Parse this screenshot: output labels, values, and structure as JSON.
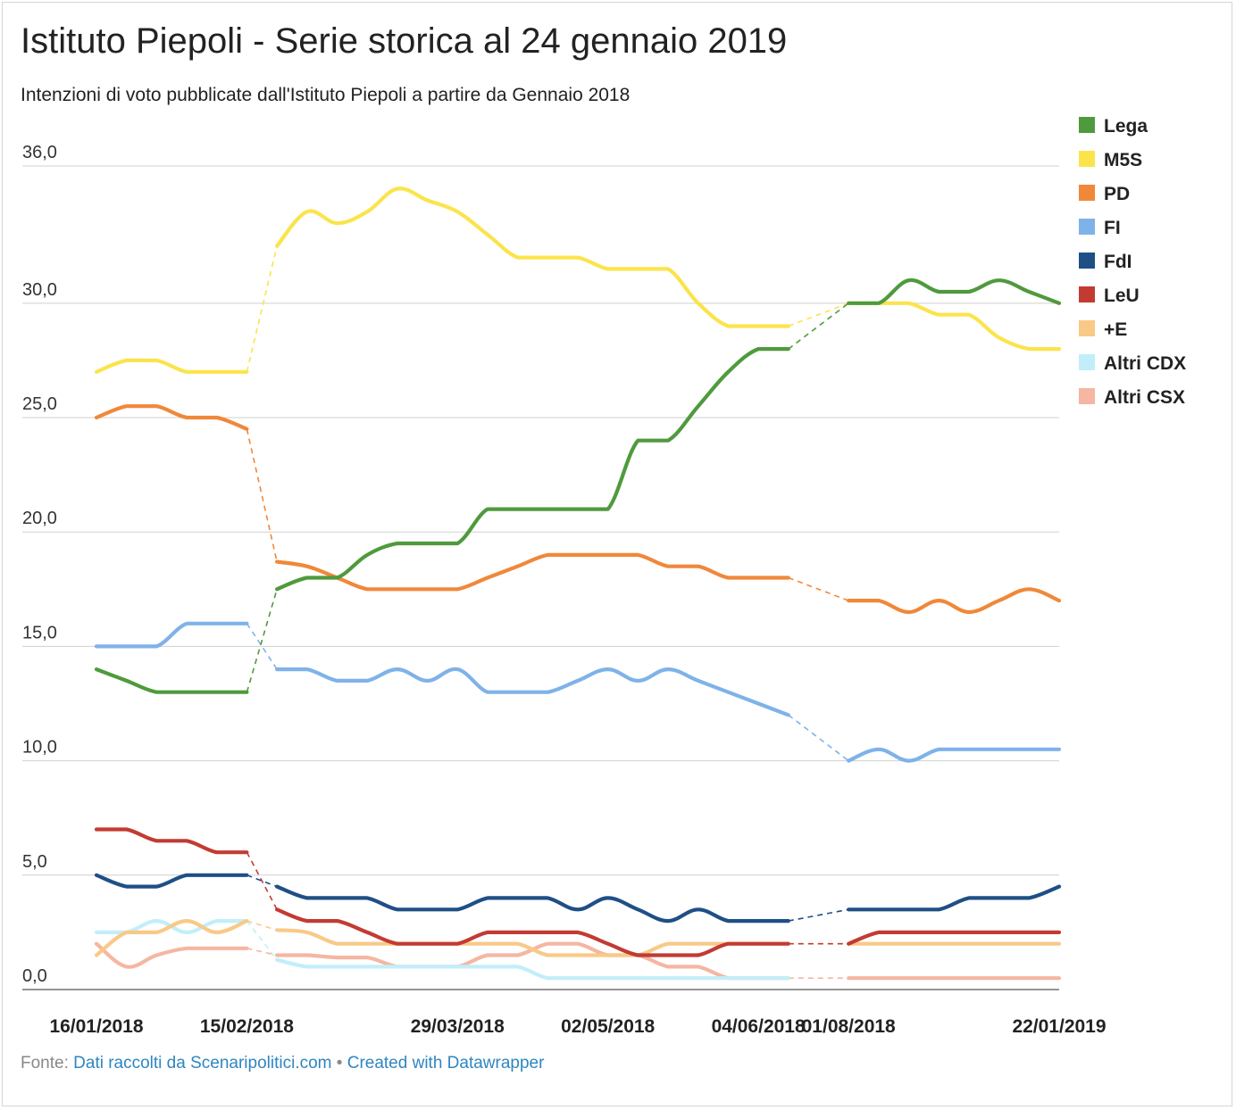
{
  "title": "Istituto Piepoli - Serie storica al 24 gennaio 2019",
  "subtitle": "Intenzioni di voto pubblicate dall'Istituto Piepoli a partire da Gennaio 2018",
  "footer": {
    "source_label": "Fonte:",
    "source_text": "Dati raccolti da Scenaripolitici.com",
    "separator": "•",
    "credit_text": "Created with Datawrapper"
  },
  "chart_data": {
    "type": "line",
    "title": "Istituto Piepoli - Serie storica al 24 gennaio 2019",
    "ylim": [
      0,
      36
    ],
    "yticks": [
      0,
      5,
      10,
      15,
      20,
      25,
      30,
      36
    ],
    "ytick_labels": [
      "0,0",
      "5,0",
      "10,0",
      "15,0",
      "20,0",
      "25,0",
      "30,0",
      "36,0"
    ],
    "xlim": [
      "2018-01-16",
      "2019-01-22"
    ],
    "xticks": [
      "2018-01-16",
      "2018-02-15",
      "2018-03-29",
      "2018-05-02",
      "2018-06-04",
      "2018-08-01",
      "2019-01-22"
    ],
    "xtick_labels": [
      "16/01/2018",
      "15/02/2018",
      "29/03/2018",
      "02/05/2018",
      "04/06/2018",
      "01/08/2018",
      "22/01/2019"
    ],
    "grid": true,
    "legend": "right",
    "gaps": [
      [
        "2018-02-15",
        "2018-03-09"
      ],
      [
        "2018-07-12",
        "2018-08-10"
      ]
    ],
    "series": [
      {
        "name": "Lega",
        "color": "#4f9a3d",
        "values": [
          [
            0,
            14
          ],
          [
            1,
            13.5
          ],
          [
            2,
            13
          ],
          [
            3,
            13
          ],
          [
            4,
            13
          ],
          [
            5,
            13
          ],
          [
            6,
            17.5
          ],
          [
            7,
            18
          ],
          [
            8,
            18
          ],
          [
            9,
            19
          ],
          [
            10,
            19.5
          ],
          [
            11,
            19.5
          ],
          [
            12,
            19.5
          ],
          [
            13,
            21
          ],
          [
            14,
            21
          ],
          [
            15,
            21
          ],
          [
            16,
            21
          ],
          [
            17,
            21
          ],
          [
            18,
            24
          ],
          [
            19,
            24
          ],
          [
            20,
            25.5
          ],
          [
            21,
            27
          ],
          [
            22,
            28
          ],
          [
            23,
            28
          ],
          [
            25,
            30
          ],
          [
            26,
            30
          ],
          [
            27,
            31
          ],
          [
            28,
            30.5
          ],
          [
            29,
            30.5
          ],
          [
            30,
            31
          ],
          [
            31,
            30.5
          ],
          [
            32,
            30
          ]
        ]
      },
      {
        "name": "M5S",
        "color": "#fbe44b",
        "values": [
          [
            0,
            27
          ],
          [
            1,
            27.5
          ],
          [
            2,
            27.5
          ],
          [
            3,
            27
          ],
          [
            4,
            27
          ],
          [
            5,
            27
          ],
          [
            6,
            32.5
          ],
          [
            7,
            34
          ],
          [
            8,
            33.5
          ],
          [
            9,
            34
          ],
          [
            10,
            35
          ],
          [
            11,
            34.5
          ],
          [
            12,
            34
          ],
          [
            13,
            33
          ],
          [
            14,
            32
          ],
          [
            15,
            32
          ],
          [
            16,
            32
          ],
          [
            17,
            31.5
          ],
          [
            18,
            31.5
          ],
          [
            19,
            31.5
          ],
          [
            20,
            30
          ],
          [
            21,
            29
          ],
          [
            22,
            29
          ],
          [
            23,
            29
          ],
          [
            25,
            30
          ],
          [
            26,
            30
          ],
          [
            27,
            30
          ],
          [
            28,
            29.5
          ],
          [
            29,
            29.5
          ],
          [
            30,
            28.5
          ],
          [
            31,
            28
          ],
          [
            32,
            28
          ]
        ]
      },
      {
        "name": "PD",
        "color": "#f0883a",
        "values": [
          [
            0,
            25
          ],
          [
            1,
            25.5
          ],
          [
            2,
            25.5
          ],
          [
            3,
            25
          ],
          [
            4,
            25
          ],
          [
            5,
            24.5
          ],
          [
            6,
            18.7
          ],
          [
            7,
            18.5
          ],
          [
            8,
            18
          ],
          [
            9,
            17.5
          ],
          [
            10,
            17.5
          ],
          [
            11,
            17.5
          ],
          [
            12,
            17.5
          ],
          [
            13,
            18
          ],
          [
            14,
            18.5
          ],
          [
            15,
            19
          ],
          [
            16,
            19
          ],
          [
            17,
            19
          ],
          [
            18,
            19
          ],
          [
            19,
            18.5
          ],
          [
            20,
            18.5
          ],
          [
            21,
            18
          ],
          [
            22,
            18
          ],
          [
            23,
            18
          ],
          [
            25,
            17
          ],
          [
            26,
            17
          ],
          [
            27,
            16.5
          ],
          [
            28,
            17
          ],
          [
            29,
            16.5
          ],
          [
            30,
            17
          ],
          [
            31,
            17.5
          ],
          [
            32,
            17
          ]
        ]
      },
      {
        "name": "FI",
        "color": "#7fb2e9",
        "values": [
          [
            0,
            15
          ],
          [
            1,
            15
          ],
          [
            2,
            15
          ],
          [
            3,
            16
          ],
          [
            4,
            16
          ],
          [
            5,
            16
          ],
          [
            6,
            14
          ],
          [
            7,
            14
          ],
          [
            8,
            13.5
          ],
          [
            9,
            13.5
          ],
          [
            10,
            14
          ],
          [
            11,
            13.5
          ],
          [
            12,
            14
          ],
          [
            13,
            13
          ],
          [
            14,
            13
          ],
          [
            15,
            13
          ],
          [
            16,
            13.5
          ],
          [
            17,
            14
          ],
          [
            18,
            13.5
          ],
          [
            19,
            14
          ],
          [
            20,
            13.5
          ],
          [
            21,
            13
          ],
          [
            22,
            12.5
          ],
          [
            23,
            12
          ],
          [
            25,
            10
          ],
          [
            26,
            10.5
          ],
          [
            27,
            10
          ],
          [
            28,
            10.5
          ],
          [
            29,
            10.5
          ],
          [
            30,
            10.5
          ],
          [
            31,
            10.5
          ],
          [
            32,
            10.5
          ]
        ]
      },
      {
        "name": "FdI",
        "color": "#1f4f86",
        "values": [
          [
            0,
            5
          ],
          [
            1,
            4.5
          ],
          [
            2,
            4.5
          ],
          [
            3,
            5
          ],
          [
            4,
            5
          ],
          [
            5,
            5
          ],
          [
            6,
            4.5
          ],
          [
            7,
            4
          ],
          [
            8,
            4
          ],
          [
            9,
            4
          ],
          [
            10,
            3.5
          ],
          [
            11,
            3.5
          ],
          [
            12,
            3.5
          ],
          [
            13,
            4
          ],
          [
            14,
            4
          ],
          [
            15,
            4
          ],
          [
            16,
            3.5
          ],
          [
            17,
            4
          ],
          [
            18,
            3.5
          ],
          [
            19,
            3
          ],
          [
            20,
            3.5
          ],
          [
            21,
            3
          ],
          [
            22,
            3
          ],
          [
            23,
            3
          ],
          [
            25,
            3.5
          ],
          [
            26,
            3.5
          ],
          [
            27,
            3.5
          ],
          [
            28,
            3.5
          ],
          [
            29,
            4
          ],
          [
            30,
            4
          ],
          [
            31,
            4
          ],
          [
            32,
            4.5
          ]
        ]
      },
      {
        "name": "LeU",
        "color": "#c23b32",
        "values": [
          [
            0,
            7
          ],
          [
            1,
            7
          ],
          [
            2,
            6.5
          ],
          [
            3,
            6.5
          ],
          [
            4,
            6
          ],
          [
            5,
            6
          ],
          [
            6,
            3.5
          ],
          [
            7,
            3
          ],
          [
            8,
            3
          ],
          [
            9,
            2.5
          ],
          [
            10,
            2
          ],
          [
            11,
            2
          ],
          [
            12,
            2
          ],
          [
            13,
            2.5
          ],
          [
            14,
            2.5
          ],
          [
            15,
            2.5
          ],
          [
            16,
            2.5
          ],
          [
            17,
            2
          ],
          [
            18,
            1.5
          ],
          [
            19,
            1.5
          ],
          [
            20,
            1.5
          ],
          [
            21,
            2
          ],
          [
            22,
            2
          ],
          [
            23,
            2
          ],
          [
            25,
            2
          ],
          [
            26,
            2.5
          ],
          [
            27,
            2.5
          ],
          [
            28,
            2.5
          ],
          [
            29,
            2.5
          ],
          [
            30,
            2.5
          ],
          [
            31,
            2.5
          ],
          [
            32,
            2.5
          ]
        ]
      },
      {
        "name": "+E",
        "color": "#f9c987",
        "values": [
          [
            0,
            1.5
          ],
          [
            1,
            2.5
          ],
          [
            2,
            2.5
          ],
          [
            3,
            3
          ],
          [
            4,
            2.5
          ],
          [
            5,
            3
          ],
          [
            6,
            2.6
          ],
          [
            7,
            2.5
          ],
          [
            8,
            2
          ],
          [
            9,
            2
          ],
          [
            10,
            2
          ],
          [
            11,
            2
          ],
          [
            12,
            2
          ],
          [
            13,
            2
          ],
          [
            14,
            2
          ],
          [
            15,
            1.5
          ],
          [
            16,
            1.5
          ],
          [
            17,
            1.5
          ],
          [
            18,
            1.5
          ],
          [
            19,
            2
          ],
          [
            20,
            2
          ],
          [
            21,
            2
          ],
          [
            22,
            2
          ],
          [
            23,
            2
          ],
          [
            25,
            2
          ],
          [
            26,
            2
          ],
          [
            27,
            2
          ],
          [
            28,
            2
          ],
          [
            29,
            2
          ],
          [
            30,
            2
          ],
          [
            31,
            2
          ],
          [
            32,
            2
          ]
        ]
      },
      {
        "name": "Altri CDX",
        "color": "#c2eefa",
        "values": [
          [
            0,
            2.5
          ],
          [
            1,
            2.5
          ],
          [
            2,
            3
          ],
          [
            3,
            2.5
          ],
          [
            4,
            3
          ],
          [
            5,
            3
          ],
          [
            6,
            1.3
          ],
          [
            7,
            1
          ],
          [
            8,
            1
          ],
          [
            9,
            1
          ],
          [
            10,
            1
          ],
          [
            11,
            1
          ],
          [
            12,
            1
          ],
          [
            13,
            1
          ],
          [
            14,
            1
          ],
          [
            15,
            0.5
          ],
          [
            16,
            0.5
          ],
          [
            17,
            0.5
          ],
          [
            18,
            0.5
          ],
          [
            19,
            0.5
          ],
          [
            20,
            0.5
          ],
          [
            21,
            0.5
          ],
          [
            22,
            0.5
          ],
          [
            23,
            0.5
          ]
        ]
      },
      {
        "name": "Altri CSX",
        "color": "#f5b6a2",
        "values": [
          [
            0,
            2
          ],
          [
            1,
            1
          ],
          [
            2,
            1.5
          ],
          [
            3,
            1.8
          ],
          [
            4,
            1.8
          ],
          [
            5,
            1.8
          ],
          [
            6,
            1.5
          ],
          [
            7,
            1.5
          ],
          [
            8,
            1.4
          ],
          [
            9,
            1.4
          ],
          [
            10,
            1
          ],
          [
            11,
            1
          ],
          [
            12,
            1
          ],
          [
            13,
            1.5
          ],
          [
            14,
            1.5
          ],
          [
            15,
            2
          ],
          [
            16,
            2
          ],
          [
            17,
            1.5
          ],
          [
            18,
            1.5
          ],
          [
            19,
            1
          ],
          [
            20,
            1
          ],
          [
            21,
            0.5
          ],
          [
            22,
            0.5
          ],
          [
            23,
            0.5
          ],
          [
            25,
            0.5
          ],
          [
            26,
            0.5
          ],
          [
            27,
            0.5
          ],
          [
            28,
            0.5
          ],
          [
            29,
            0.5
          ],
          [
            30,
            0.5
          ],
          [
            31,
            0.5
          ],
          [
            32,
            0.5
          ]
        ]
      }
    ]
  }
}
